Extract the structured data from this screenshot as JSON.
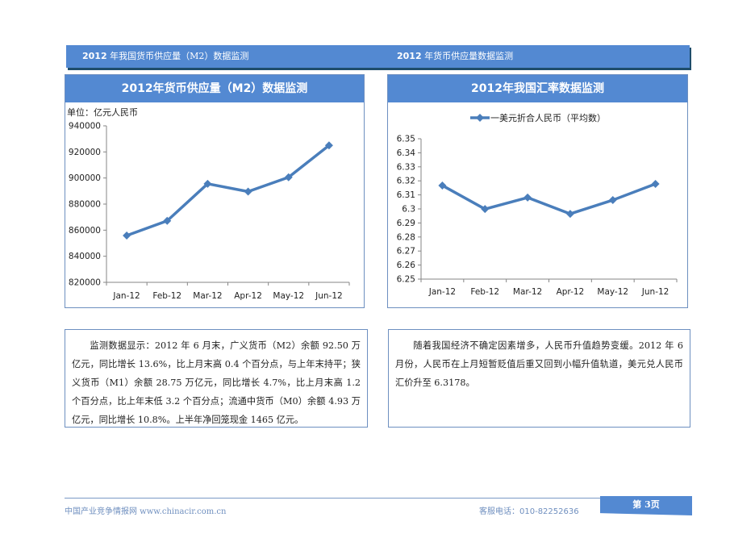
{
  "header": {
    "left": {
      "year": "2012",
      "text": " 年我国货币供应量（M2）数据监测"
    },
    "right": {
      "year": "2012",
      "text": " 年货币供应量数据监测"
    }
  },
  "panels": {
    "m2": {
      "title": "2012年货币供应量（M2）数据监测",
      "unit": "单位：亿元人民币"
    },
    "fx": {
      "title": "2012年我国汇率数据监测",
      "legend": "一美元折合人民币（平均数）"
    }
  },
  "chart_data": [
    {
      "type": "line",
      "title": "2012年货币供应量（M2）数据监测",
      "ylabel": "单位：亿元人民币",
      "xlabel": "",
      "categories": [
        "Jan-12",
        "Feb-12",
        "Mar-12",
        "Apr-12",
        "May-12",
        "Jun-12"
      ],
      "series": [
        {
          "name": "M2",
          "values": [
            855898,
            867171,
            895565,
            889604,
            900556,
            925022
          ]
        }
      ],
      "ylim": [
        820000,
        940000
      ],
      "yticks": [
        "820000",
        "840000",
        "860000",
        "880000",
        "900000",
        "920000",
        "940000"
      ],
      "grid": false,
      "legend": "none",
      "color": "#4a7ebb"
    },
    {
      "type": "line",
      "title": "2012年我国汇率数据监测",
      "xlabel": "",
      "ylabel": "",
      "categories": [
        "Jan-12",
        "Feb-12",
        "Mar-12",
        "Apr-12",
        "May-12",
        "Jun-12"
      ],
      "series": [
        {
          "name": "一美元折合人民币（平均数）",
          "values": [
            6.3167,
            6.2999,
            6.3081,
            6.2965,
            6.3063,
            6.3178
          ]
        }
      ],
      "ylim": [
        6.25,
        6.35
      ],
      "yticks": [
        "6.25",
        "6.26",
        "6.27",
        "6.28",
        "6.29",
        "6.3",
        "6.31",
        "6.32",
        "6.33",
        "6.34",
        "6.35"
      ],
      "grid": false,
      "legend": "top",
      "color": "#4a7ebb"
    }
  ],
  "text": {
    "left": "监测数据显示：2012 年 6 月末，广义货币（M2）余额 92.50 万亿元，同比增长 13.6%，比上月末高 0.4 个百分点，与上年末持平；狭义货币（M1）余额 28.75 万亿元，同比增长 4.7%，比上月末高 1.2 个百分点，比上年末低 3.2 个百分点；流通中货币（M0）余额 4.93 万亿元，同比增长 10.8%。上半年净回笼现金 1465 亿元。",
    "right": "随着我国经济不确定因素增多，人民币升值趋势变缓。2012 年 6 月份，人民币在上月短暂贬值后重又回到小幅升值轨道，美元兑人民币汇价升至 6.3178。"
  },
  "footer": {
    "site": "中国产业竞争情报网 www.chinacir.com.cn",
    "phone_label": "客服电话：",
    "phone": "010-82252636",
    "page": "第 3页"
  }
}
